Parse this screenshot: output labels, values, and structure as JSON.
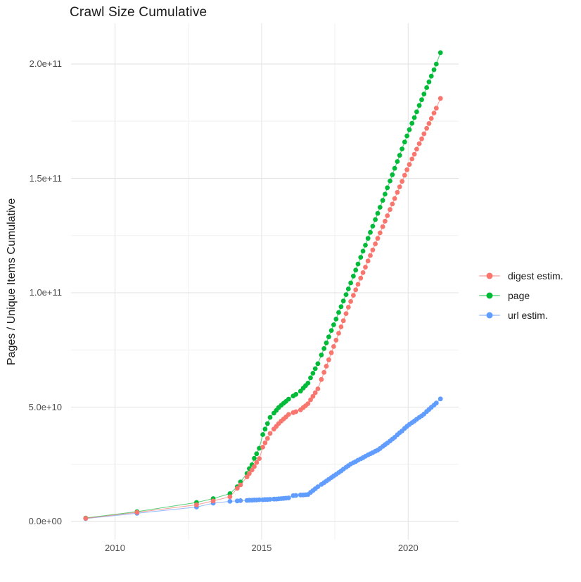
{
  "chart_data": {
    "type": "scatter",
    "title": "Crawl Size Cumulative",
    "xlabel": "",
    "ylabel": "Pages / Unique Items Cumulative",
    "values_unit": "billions (1e9) of pages / unique items",
    "xlim": [
      2008.5,
      2021.72
    ],
    "ylim_billions": [
      -8,
      217.85
    ],
    "grid": true,
    "legend_position": "right-center",
    "x_major_ticks": [
      {
        "value": 2010,
        "label": "2010"
      },
      {
        "value": 2015,
        "label": "2015"
      },
      {
        "value": 2020,
        "label": "2020"
      }
    ],
    "x_minor_ticks": [
      2012.5,
      2017.5
    ],
    "y_major_ticks": [
      {
        "value": 0,
        "label": "0.0e+00"
      },
      {
        "value": 50,
        "label": "5.0e+10"
      },
      {
        "value": 100,
        "label": "1.0e+11"
      },
      {
        "value": 150,
        "label": "1.5e+11"
      },
      {
        "value": 200,
        "label": "2.0e+11"
      }
    ],
    "y_minor_ticks": [
      25,
      75,
      125,
      175
    ],
    "series": [
      {
        "name": "digest estim.",
        "color": "#F8766D",
        "points": [
          [
            2009,
            1.4
          ],
          [
            2010.75,
            4
          ],
          [
            2012.78,
            7.3
          ],
          [
            2013.35,
            9
          ],
          [
            2013.92,
            10.8
          ],
          [
            2014.17,
            14.5
          ],
          [
            2014.28,
            16
          ],
          [
            2014.5,
            19.5
          ],
          [
            2014.58,
            21
          ],
          [
            2014.67,
            22.5
          ],
          [
            2014.75,
            24
          ],
          [
            2014.83,
            25.8
          ],
          [
            2014.92,
            27.5
          ],
          [
            2015.04,
            32.5
          ],
          [
            2015.12,
            34.4
          ],
          [
            2015.2,
            36.3
          ],
          [
            2015.29,
            38.5
          ],
          [
            2015.42,
            40.4
          ],
          [
            2015.5,
            41.6
          ],
          [
            2015.58,
            42.8
          ],
          [
            2015.67,
            43.9
          ],
          [
            2015.75,
            44.8
          ],
          [
            2015.83,
            45.7
          ],
          [
            2015.92,
            46.8
          ],
          [
            2016.08,
            47.6
          ],
          [
            2016.17,
            48
          ],
          [
            2016.33,
            48.8
          ],
          [
            2016.42,
            49.8
          ],
          [
            2016.5,
            50.6
          ],
          [
            2016.58,
            51.5
          ],
          [
            2016.67,
            53.2
          ],
          [
            2016.75,
            54.7
          ],
          [
            2016.83,
            56.3
          ],
          [
            2016.92,
            58
          ],
          [
            2017.04,
            62.1
          ],
          [
            2017.13,
            65.2
          ],
          [
            2017.21,
            67.9
          ],
          [
            2017.29,
            70.7
          ],
          [
            2017.38,
            73.8
          ],
          [
            2017.46,
            76.5
          ],
          [
            2017.54,
            79.3
          ],
          [
            2017.63,
            82.3
          ],
          [
            2017.71,
            85.1
          ],
          [
            2017.79,
            87.8
          ],
          [
            2017.88,
            90.9
          ],
          [
            2017.96,
            93.7
          ],
          [
            2018.04,
            96.2
          ],
          [
            2018.13,
            98.9
          ],
          [
            2018.21,
            101.3
          ],
          [
            2018.29,
            103.7
          ],
          [
            2018.38,
            106.4
          ],
          [
            2018.46,
            108.8
          ],
          [
            2018.54,
            111.2
          ],
          [
            2018.63,
            113.9
          ],
          [
            2018.71,
            116.3
          ],
          [
            2018.79,
            118.7
          ],
          [
            2018.88,
            121.4
          ],
          [
            2018.96,
            123.8
          ],
          [
            2019.04,
            126.2
          ],
          [
            2019.13,
            128.9
          ],
          [
            2019.21,
            131.3
          ],
          [
            2019.29,
            133.7
          ],
          [
            2019.38,
            136.4
          ],
          [
            2019.46,
            138.8
          ],
          [
            2019.54,
            141.2
          ],
          [
            2019.63,
            143.9
          ],
          [
            2019.71,
            146.3
          ],
          [
            2019.79,
            148.7
          ],
          [
            2019.88,
            151.4
          ],
          [
            2019.96,
            153.8
          ],
          [
            2020.04,
            156.1
          ],
          [
            2020.13,
            158.5
          ],
          [
            2020.21,
            160.6
          ],
          [
            2020.29,
            162.8
          ],
          [
            2020.38,
            165.2
          ],
          [
            2020.46,
            167.3
          ],
          [
            2020.54,
            169.5
          ],
          [
            2020.63,
            171.9
          ],
          [
            2020.71,
            174
          ],
          [
            2020.79,
            176.2
          ],
          [
            2020.88,
            178.6
          ],
          [
            2020.96,
            180.7
          ],
          [
            2021.1,
            185
          ]
        ]
      },
      {
        "name": "page",
        "color": "#00BA38",
        "points": [
          [
            2009,
            1.5
          ],
          [
            2010.75,
            4.3
          ],
          [
            2012.78,
            8.3
          ],
          [
            2013.35,
            10
          ],
          [
            2013.92,
            12.2
          ],
          [
            2014.17,
            15.2
          ],
          [
            2014.28,
            17.3
          ],
          [
            2014.5,
            21
          ],
          [
            2014.58,
            23.1
          ],
          [
            2014.67,
            24.8
          ],
          [
            2014.75,
            27.6
          ],
          [
            2014.83,
            29.6
          ],
          [
            2014.92,
            32
          ],
          [
            2015.04,
            38
          ],
          [
            2015.12,
            40.4
          ],
          [
            2015.2,
            42.8
          ],
          [
            2015.29,
            45.5
          ],
          [
            2015.42,
            47.4
          ],
          [
            2015.5,
            48.6
          ],
          [
            2015.58,
            49.8
          ],
          [
            2015.67,
            50.8
          ],
          [
            2015.75,
            51.7
          ],
          [
            2015.83,
            52.5
          ],
          [
            2015.92,
            53.5
          ],
          [
            2016.08,
            54.9
          ],
          [
            2016.17,
            55.6
          ],
          [
            2016.33,
            57
          ],
          [
            2016.42,
            58.3
          ],
          [
            2016.5,
            59.4
          ],
          [
            2016.58,
            60.5
          ],
          [
            2016.67,
            62.8
          ],
          [
            2016.75,
            64.8
          ],
          [
            2016.83,
            66.8
          ],
          [
            2016.92,
            69
          ],
          [
            2017.04,
            72.8
          ],
          [
            2017.13,
            75.6
          ],
          [
            2017.21,
            78.1
          ],
          [
            2017.29,
            80.7
          ],
          [
            2017.38,
            83.5
          ],
          [
            2017.46,
            86
          ],
          [
            2017.54,
            88.5
          ],
          [
            2017.63,
            91.4
          ],
          [
            2017.71,
            93.9
          ],
          [
            2017.79,
            96.4
          ],
          [
            2017.88,
            99.2
          ],
          [
            2017.96,
            101.7
          ],
          [
            2018.04,
            104.3
          ],
          [
            2018.13,
            107.3
          ],
          [
            2018.21,
            109.9
          ],
          [
            2018.29,
            112.6
          ],
          [
            2018.38,
            115.5
          ],
          [
            2018.46,
            118.2
          ],
          [
            2018.54,
            120.8
          ],
          [
            2018.63,
            123.8
          ],
          [
            2018.71,
            126.4
          ],
          [
            2018.79,
            129.1
          ],
          [
            2018.88,
            132
          ],
          [
            2018.96,
            134.7
          ],
          [
            2019.04,
            137.4
          ],
          [
            2019.13,
            140.4
          ],
          [
            2019.21,
            143.1
          ],
          [
            2019.29,
            145.9
          ],
          [
            2019.38,
            148.9
          ],
          [
            2019.46,
            151.6
          ],
          [
            2019.54,
            154.4
          ],
          [
            2019.63,
            157.4
          ],
          [
            2019.71,
            160.1
          ],
          [
            2019.79,
            162.9
          ],
          [
            2019.88,
            165.9
          ],
          [
            2019.96,
            168.6
          ],
          [
            2020.04,
            171.3
          ],
          [
            2020.13,
            174.1
          ],
          [
            2020.21,
            176.6
          ],
          [
            2020.29,
            179.1
          ],
          [
            2020.38,
            181.9
          ],
          [
            2020.46,
            184.4
          ],
          [
            2020.54,
            186.9
          ],
          [
            2020.63,
            189.7
          ],
          [
            2020.71,
            192.2
          ],
          [
            2020.79,
            194.7
          ],
          [
            2020.88,
            197.5
          ],
          [
            2020.96,
            200
          ],
          [
            2021.1,
            205
          ]
        ]
      },
      {
        "name": "url estim.",
        "color": "#619CFF",
        "points": [
          [
            2009,
            1.3
          ],
          [
            2010.75,
            3.6
          ],
          [
            2012.78,
            6.3
          ],
          [
            2013.35,
            8
          ],
          [
            2013.92,
            8.8
          ],
          [
            2014.17,
            9
          ],
          [
            2014.28,
            9.1
          ],
          [
            2014.5,
            9.2
          ],
          [
            2014.58,
            9.3
          ],
          [
            2014.67,
            9.3
          ],
          [
            2014.75,
            9.4
          ],
          [
            2014.83,
            9.4
          ],
          [
            2014.92,
            9.5
          ],
          [
            2015.04,
            9.5
          ],
          [
            2015.12,
            9.6
          ],
          [
            2015.2,
            9.6
          ],
          [
            2015.29,
            9.7
          ],
          [
            2015.42,
            9.8
          ],
          [
            2015.5,
            9.8
          ],
          [
            2015.58,
            9.9
          ],
          [
            2015.67,
            10
          ],
          [
            2015.75,
            10.1
          ],
          [
            2015.83,
            10.2
          ],
          [
            2015.92,
            10.3
          ],
          [
            2016.08,
            11.3
          ],
          [
            2016.17,
            11.4
          ],
          [
            2016.33,
            11.6
          ],
          [
            2016.42,
            11.6
          ],
          [
            2016.5,
            11.7
          ],
          [
            2016.58,
            11.8
          ],
          [
            2016.67,
            12.7
          ],
          [
            2016.75,
            13.5
          ],
          [
            2016.83,
            14.3
          ],
          [
            2016.92,
            15.2
          ],
          [
            2017.04,
            16.2
          ],
          [
            2017.13,
            17
          ],
          [
            2017.21,
            17.7
          ],
          [
            2017.29,
            18.4
          ],
          [
            2017.38,
            19.2
          ],
          [
            2017.46,
            19.9
          ],
          [
            2017.54,
            20.6
          ],
          [
            2017.63,
            21.4
          ],
          [
            2017.71,
            22.1
          ],
          [
            2017.79,
            22.9
          ],
          [
            2017.88,
            23.7
          ],
          [
            2017.96,
            24.4
          ],
          [
            2018.04,
            25.1
          ],
          [
            2018.13,
            25.7
          ],
          [
            2018.21,
            26.2
          ],
          [
            2018.29,
            26.8
          ],
          [
            2018.38,
            27.4
          ],
          [
            2018.46,
            27.9
          ],
          [
            2018.54,
            28.5
          ],
          [
            2018.63,
            29.1
          ],
          [
            2018.71,
            29.6
          ],
          [
            2018.79,
            30.1
          ],
          [
            2018.88,
            30.7
          ],
          [
            2018.96,
            31.2
          ],
          [
            2019.04,
            31.9
          ],
          [
            2019.13,
            32.8
          ],
          [
            2019.21,
            33.6
          ],
          [
            2019.29,
            34.3
          ],
          [
            2019.38,
            35.2
          ],
          [
            2019.46,
            36
          ],
          [
            2019.54,
            36.8
          ],
          [
            2019.63,
            37.9
          ],
          [
            2019.71,
            38.8
          ],
          [
            2019.79,
            39.6
          ],
          [
            2019.88,
            40.7
          ],
          [
            2019.96,
            41.6
          ],
          [
            2020.04,
            42.4
          ],
          [
            2020.13,
            43.2
          ],
          [
            2020.21,
            43.9
          ],
          [
            2020.29,
            44.7
          ],
          [
            2020.38,
            45.5
          ],
          [
            2020.46,
            46.2
          ],
          [
            2020.54,
            47
          ],
          [
            2020.63,
            48.1
          ],
          [
            2020.71,
            49
          ],
          [
            2020.79,
            49.9
          ],
          [
            2020.88,
            50.9
          ],
          [
            2020.96,
            51.8
          ],
          [
            2021.1,
            53.6
          ]
        ]
      }
    ]
  },
  "colors": {
    "background": "#FFFFFF",
    "grid_major": "#E6E6E6",
    "grid_minor": "#F0F0F0",
    "title_text": "#1A1A1A",
    "tick_text": "#4D4D4D"
  }
}
